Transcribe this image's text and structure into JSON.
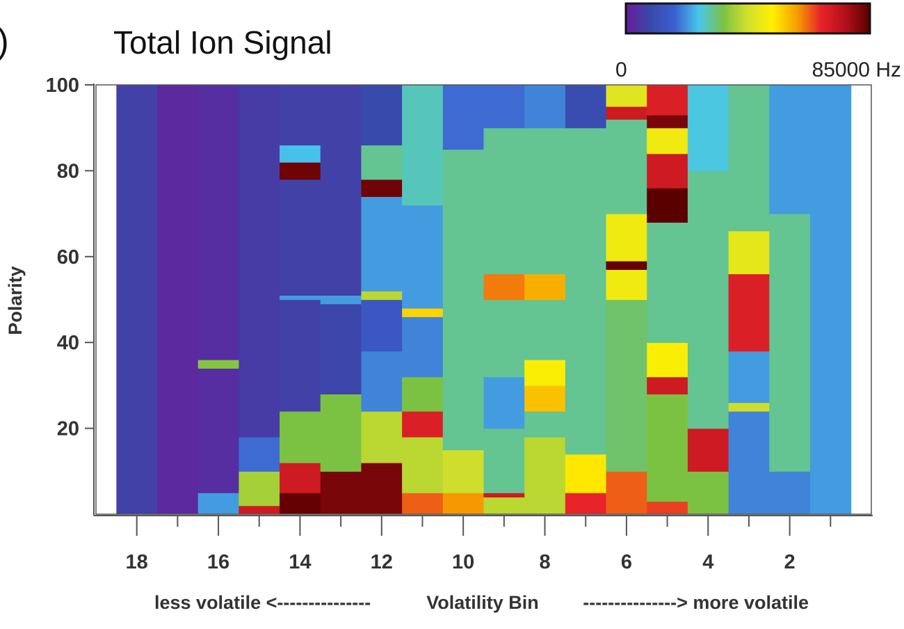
{
  "chart_data": {
    "type": "heatmap",
    "panel_marker": ")",
    "title": "Total Ion Signal",
    "xlabel": "Volatility Bin",
    "xlabel_left": "less volatile <---------------",
    "xlabel_right": "---------------> more volatile",
    "ylabel": "Polarity",
    "xlim": [
      19,
      0
    ],
    "ylim": [
      0,
      100
    ],
    "xticks": [
      18,
      16,
      14,
      12,
      10,
      8,
      6,
      4,
      2
    ],
    "yticks": [
      20,
      40,
      60,
      80,
      100
    ],
    "colorbar": {
      "min_label": "0",
      "max_label": "85000 Hz",
      "min": 0,
      "max": 85000,
      "colors": [
        "#6a1b9a",
        "#3949ab",
        "#3b5fcf",
        "#48c7ec",
        "#7cc242",
        "#d4e02c",
        "#fff000",
        "#f6a000",
        "#e8232a",
        "#b1101a",
        "#5a0000"
      ]
    },
    "columns": [
      {
        "bin": 18,
        "segments": [
          {
            "from": 0,
            "to": 100,
            "value": 7000
          }
        ]
      },
      {
        "bin": 17,
        "segments": [
          {
            "from": 0,
            "to": 100,
            "value": 2500
          }
        ]
      },
      {
        "bin": 16,
        "segments": [
          {
            "from": 0,
            "to": 5,
            "value": 22000
          },
          {
            "from": 5,
            "to": 34,
            "value": 3500
          },
          {
            "from": 34,
            "to": 36,
            "value": 35000
          },
          {
            "from": 36,
            "to": 100,
            "value": 3500
          }
        ]
      },
      {
        "bin": 15,
        "segments": [
          {
            "from": 0,
            "to": 2,
            "value": 72000
          },
          {
            "from": 2,
            "to": 10,
            "value": 38000
          },
          {
            "from": 10,
            "to": 18,
            "value": 18000
          },
          {
            "from": 18,
            "to": 100,
            "value": 6000
          }
        ]
      },
      {
        "bin": 14,
        "segments": [
          {
            "from": 0,
            "to": 5,
            "value": 84000
          },
          {
            "from": 5,
            "to": 12,
            "value": 72000
          },
          {
            "from": 12,
            "to": 24,
            "value": 34000
          },
          {
            "from": 24,
            "to": 50,
            "value": 7000
          },
          {
            "from": 50,
            "to": 51,
            "value": 22000
          },
          {
            "from": 51,
            "to": 78,
            "value": 7000
          },
          {
            "from": 78,
            "to": 82,
            "value": 83000
          },
          {
            "from": 82,
            "to": 86,
            "value": 25000
          },
          {
            "from": 86,
            "to": 100,
            "value": 7000
          }
        ]
      },
      {
        "bin": 13,
        "segments": [
          {
            "from": 0,
            "to": 10,
            "value": 82000
          },
          {
            "from": 10,
            "to": 28,
            "value": 34000
          },
          {
            "from": 28,
            "to": 49,
            "value": 8000
          },
          {
            "from": 49,
            "to": 51,
            "value": 22000
          },
          {
            "from": 51,
            "to": 100,
            "value": 7000
          }
        ]
      },
      {
        "bin": 12,
        "segments": [
          {
            "from": 0,
            "to": 12,
            "value": 82000
          },
          {
            "from": 12,
            "to": 24,
            "value": 40000
          },
          {
            "from": 24,
            "to": 38,
            "value": 20000
          },
          {
            "from": 38,
            "to": 50,
            "value": 14000
          },
          {
            "from": 50,
            "to": 52,
            "value": 40000
          },
          {
            "from": 52,
            "to": 74,
            "value": 22000
          },
          {
            "from": 74,
            "to": 78,
            "value": 83000
          },
          {
            "from": 78,
            "to": 86,
            "value": 30000
          },
          {
            "from": 86,
            "to": 100,
            "value": 9000
          }
        ]
      },
      {
        "bin": 11,
        "segments": [
          {
            "from": 0,
            "to": 5,
            "value": 64000
          },
          {
            "from": 5,
            "to": 18,
            "value": 40000
          },
          {
            "from": 18,
            "to": 24,
            "value": 70000
          },
          {
            "from": 24,
            "to": 32,
            "value": 34000
          },
          {
            "from": 32,
            "to": 46,
            "value": 20000
          },
          {
            "from": 46,
            "to": 48,
            "value": 54000
          },
          {
            "from": 48,
            "to": 72,
            "value": 22000
          },
          {
            "from": 72,
            "to": 100,
            "value": 28000
          }
        ]
      },
      {
        "bin": 10,
        "segments": [
          {
            "from": 0,
            "to": 5,
            "value": 60000
          },
          {
            "from": 5,
            "to": 15,
            "value": 42000
          },
          {
            "from": 15,
            "to": 30,
            "value": 30000
          },
          {
            "from": 30,
            "to": 60,
            "value": 30000
          },
          {
            "from": 60,
            "to": 85,
            "value": 30000
          },
          {
            "from": 85,
            "to": 100,
            "value": 18000
          }
        ]
      },
      {
        "bin": 9,
        "segments": [
          {
            "from": 0,
            "to": 4,
            "value": 40000
          },
          {
            "from": 4,
            "to": 5,
            "value": 72000
          },
          {
            "from": 5,
            "to": 20,
            "value": 30000
          },
          {
            "from": 20,
            "to": 32,
            "value": 22000
          },
          {
            "from": 32,
            "to": 50,
            "value": 30000
          },
          {
            "from": 50,
            "to": 56,
            "value": 62000
          },
          {
            "from": 56,
            "to": 90,
            "value": 30000
          },
          {
            "from": 90,
            "to": 100,
            "value": 18000
          }
        ]
      },
      {
        "bin": 8,
        "segments": [
          {
            "from": 0,
            "to": 18,
            "value": 40000
          },
          {
            "from": 18,
            "to": 24,
            "value": 30000
          },
          {
            "from": 24,
            "to": 30,
            "value": 56000
          },
          {
            "from": 30,
            "to": 36,
            "value": 50000
          },
          {
            "from": 36,
            "to": 50,
            "value": 30000
          },
          {
            "from": 50,
            "to": 56,
            "value": 58000
          },
          {
            "from": 56,
            "to": 90,
            "value": 30000
          },
          {
            "from": 90,
            "to": 100,
            "value": 20000
          }
        ]
      },
      {
        "bin": 7,
        "segments": [
          {
            "from": 0,
            "to": 5,
            "value": 68000
          },
          {
            "from": 5,
            "to": 14,
            "value": 52000
          },
          {
            "from": 14,
            "to": 90,
            "value": 30000
          },
          {
            "from": 90,
            "to": 100,
            "value": 10000
          }
        ]
      },
      {
        "bin": 6,
        "segments": [
          {
            "from": 0,
            "to": 10,
            "value": 64000
          },
          {
            "from": 10,
            "to": 50,
            "value": 32000
          },
          {
            "from": 50,
            "to": 57,
            "value": 48000
          },
          {
            "from": 57,
            "to": 59,
            "value": 84000
          },
          {
            "from": 59,
            "to": 70,
            "value": 48000
          },
          {
            "from": 70,
            "to": 92,
            "value": 30000
          },
          {
            "from": 92,
            "to": 95,
            "value": 72000
          },
          {
            "from": 95,
            "to": 100,
            "value": 45000
          }
        ]
      },
      {
        "bin": 5,
        "segments": [
          {
            "from": 0,
            "to": 3,
            "value": 66000
          },
          {
            "from": 3,
            "to": 28,
            "value": 34000
          },
          {
            "from": 28,
            "to": 32,
            "value": 72000
          },
          {
            "from": 32,
            "to": 40,
            "value": 50000
          },
          {
            "from": 40,
            "to": 68,
            "value": 30000
          },
          {
            "from": 68,
            "to": 76,
            "value": 85000
          },
          {
            "from": 76,
            "to": 84,
            "value": 72000
          },
          {
            "from": 84,
            "to": 90,
            "value": 48000
          },
          {
            "from": 90,
            "to": 93,
            "value": 82000
          },
          {
            "from": 93,
            "to": 100,
            "value": 70000
          }
        ]
      },
      {
        "bin": 4,
        "segments": [
          {
            "from": 0,
            "to": 10,
            "value": 34000
          },
          {
            "from": 10,
            "to": 20,
            "value": 72000
          },
          {
            "from": 20,
            "to": 80,
            "value": 30000
          },
          {
            "from": 80,
            "to": 100,
            "value": 26000
          }
        ]
      },
      {
        "bin": 3,
        "segments": [
          {
            "from": 0,
            "to": 24,
            "value": 20000
          },
          {
            "from": 24,
            "to": 26,
            "value": 42000
          },
          {
            "from": 26,
            "to": 38,
            "value": 22000
          },
          {
            "from": 38,
            "to": 56,
            "value": 70000
          },
          {
            "from": 56,
            "to": 66,
            "value": 46000
          },
          {
            "from": 66,
            "to": 100,
            "value": 30000
          }
        ]
      },
      {
        "bin": 2,
        "segments": [
          {
            "from": 0,
            "to": 10,
            "value": 20000
          },
          {
            "from": 10,
            "to": 70,
            "value": 30000
          },
          {
            "from": 70,
            "to": 100,
            "value": 22000
          }
        ]
      },
      {
        "bin": 1,
        "segments": [
          {
            "from": 0,
            "to": 100,
            "value": 22000
          }
        ]
      }
    ]
  }
}
